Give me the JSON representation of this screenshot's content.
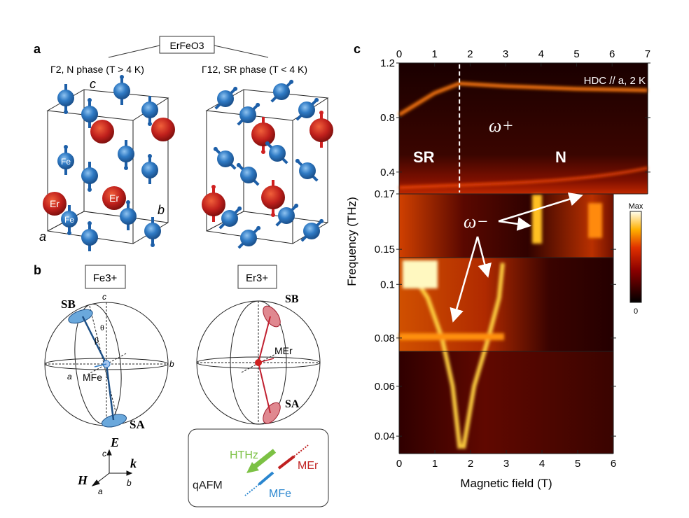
{
  "panel_a": {
    "label": "a",
    "compound": "ErFeO3",
    "left_title": "Γ2, N phase (T > 4 K)",
    "right_title": "Γ12, SR phase (T < 4 K)",
    "axis_c": "c",
    "axis_a": "a",
    "axis_b": "b",
    "fe_label": "Fe",
    "er_label": "Er",
    "colors": {
      "fe": "#2f7ac4",
      "er": "#c0201c"
    }
  },
  "panel_b": {
    "label": "b",
    "fe_box": "Fe3+",
    "er_box": "Er3+",
    "sb": "SB",
    "sa": "SA",
    "theta": "θ",
    "beta": "β",
    "m_fe": "MFe",
    "m_er": "MEr",
    "axis_c": "c",
    "axis_a": "a",
    "axis_b": "b",
    "frame": {
      "E": "E",
      "k": "k",
      "H": "H",
      "c": "c",
      "b": "b",
      "a": "a"
    },
    "legend": {
      "h_thz": "HTHz",
      "qafm": "qAFM",
      "m_er": "MEr",
      "m_fe": "MFe"
    },
    "colors": {
      "h_thz": "#7cc144",
      "m_er": "#c0201c",
      "m_fe": "#2a86cf"
    }
  },
  "panel_c": {
    "label": "c",
    "annotation": "HDC // a, 2 K",
    "omega_plus": "ω+",
    "omega_minus": "ω−",
    "sr": "SR",
    "n": "N",
    "colorbar": {
      "max": "Max",
      "min": "0",
      "colormap": "hot"
    }
  },
  "chart_data": {
    "type": "heatmap",
    "xlabel": "Magnetic field (T)",
    "ylabel": "Frequency (THz)",
    "top_x_ticks": [
      "0",
      "1",
      "2",
      "3",
      "4",
      "5",
      "6",
      "7"
    ],
    "bottom_x_ticks": [
      "0",
      "1",
      "2",
      "3",
      "4",
      "5",
      "6"
    ],
    "top_xlim": [
      0,
      7
    ],
    "bottom_xlim": [
      0,
      6
    ],
    "y_ticks": [
      "1.2",
      "0.8",
      "0.4",
      "0.17",
      "0.15",
      "0.1",
      "0.08",
      "0.06",
      "0.04"
    ],
    "sub_panels": [
      {
        "ylim": [
          0.24,
          1.2
        ],
        "xlim": [
          0,
          7
        ],
        "ticks": [
          1.2,
          0.8,
          0.4
        ]
      },
      {
        "ylim": [
          0.147,
          0.17
        ],
        "xlim": [
          0,
          6
        ],
        "ticks": [
          0.17,
          0.15
        ]
      },
      {
        "ylim": [
          0.075,
          0.11
        ],
        "xlim": [
          0,
          6
        ],
        "ticks": [
          0.1,
          0.08
        ]
      },
      {
        "ylim": [
          0.033,
          0.074
        ],
        "xlim": [
          0,
          6
        ],
        "ticks": [
          0.06,
          0.04
        ]
      }
    ],
    "phase_boundary_field": 1.7,
    "omega_plus_mode": {
      "x": [
        0,
        0.5,
        1.0,
        1.7,
        3,
        5,
        7
      ],
      "y": [
        0.82,
        0.9,
        0.98,
        1.05,
        1.03,
        1.01,
        1.0
      ]
    },
    "omega_minus_modes": [
      {
        "x": [
          0.3,
          0.8,
          1.2,
          1.5,
          1.7
        ],
        "y": [
          0.105,
          0.095,
          0.08,
          0.06,
          0.035
        ]
      },
      {
        "x": [
          1.8,
          2.1,
          2.5,
          2.8,
          2.9
        ],
        "y": [
          0.035,
          0.06,
          0.08,
          0.095,
          0.108
        ]
      }
    ]
  }
}
